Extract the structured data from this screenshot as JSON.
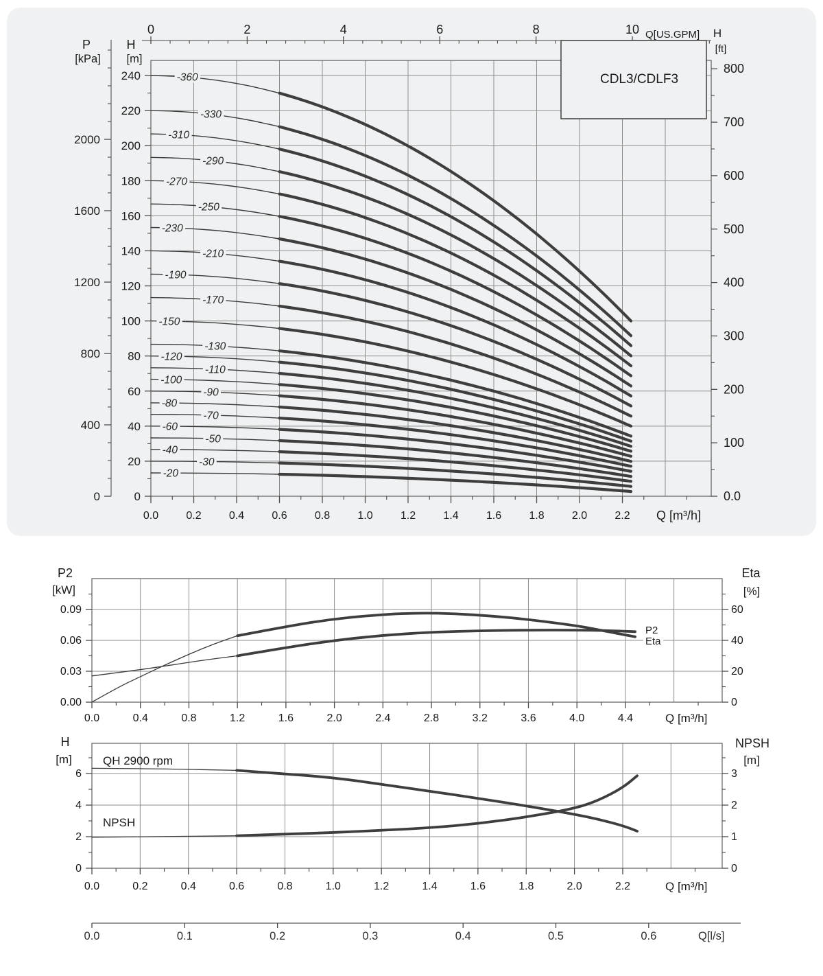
{
  "page": {
    "background": "#ffffff",
    "panel_background": "#f0f1f2"
  },
  "colors": {
    "curve": "#3e3e3e",
    "thin_curve": "#3a3a3a",
    "grid": "#8d8d8d",
    "axis": "#696969",
    "tick": "#4a4a4a",
    "text": "#1b1b1b",
    "box_border": "#4a4a4a",
    "ls_axis": "#9a9a9a"
  },
  "chart_data": [
    {
      "id": "qh-family",
      "type": "line",
      "title": "CDL3/CDLF3",
      "x_bottom": {
        "label": "Q [m³/h]",
        "ticks": [
          "0.0",
          "0.2",
          "0.4",
          "0.6",
          "0.8",
          "1.0",
          "1.2",
          "1.4",
          "1.6",
          "1.8",
          "2.0",
          "2.2"
        ],
        "minor_step": 0.1,
        "range": [
          0,
          2.61
        ]
      },
      "x_top": {
        "label": "Q[US.GPM]",
        "ticks": [
          "0",
          "2",
          "4",
          "6",
          "8",
          "10"
        ],
        "minor_step": 0.4
      },
      "y_left_p": {
        "title": [
          "P",
          "[kPa]"
        ],
        "ticks": [
          "0",
          "400",
          "800",
          "1200",
          "1600",
          "2000"
        ],
        "minor_step": 100
      },
      "y_left_h": {
        "title": [
          "H",
          "[m]"
        ],
        "ticks": [
          "0",
          "20",
          "40",
          "60",
          "80",
          "100",
          "120",
          "140",
          "160",
          "180",
          "200",
          "220",
          "240"
        ],
        "minor_step": 10
      },
      "y_right_ft": {
        "title": [
          "H",
          "[ft]"
        ],
        "ticks": [
          "0.0",
          "100",
          "200",
          "300",
          "400",
          "500",
          "600",
          "700",
          "800"
        ],
        "minor_step": 50
      },
      "q_solid_from": 0.6,
      "q_max": 2.24,
      "falloff_exponent": 2,
      "series": [
        {
          "label": "-360",
          "shutoff_head_m": 240.0,
          "end_head_m": 100.0,
          "label_q": 0.17
        },
        {
          "label": "-330",
          "shutoff_head_m": 220.0,
          "end_head_m": 91.6,
          "label_q": 0.28
        },
        {
          "label": "-310",
          "shutoff_head_m": 206.7,
          "end_head_m": 85.9,
          "label_q": 0.13
        },
        {
          "label": "-290",
          "shutoff_head_m": 193.3,
          "end_head_m": 80.1,
          "label_q": 0.29
        },
        {
          "label": "-270",
          "shutoff_head_m": 180.0,
          "end_head_m": 74.4,
          "label_q": 0.12
        },
        {
          "label": "-250",
          "shutoff_head_m": 166.7,
          "end_head_m": 68.7,
          "label_q": 0.27
        },
        {
          "label": "-230",
          "shutoff_head_m": 153.3,
          "end_head_m": 62.9,
          "label_q": 0.1
        },
        {
          "label": "-210",
          "shutoff_head_m": 140.0,
          "end_head_m": 57.2,
          "label_q": 0.29
        },
        {
          "label": "-190",
          "shutoff_head_m": 126.7,
          "end_head_m": 51.5,
          "label_q": 0.115
        },
        {
          "label": "-170",
          "shutoff_head_m": 113.3,
          "end_head_m": 45.7,
          "label_q": 0.29
        },
        {
          "label": "-150",
          "shutoff_head_m": 100.0,
          "end_head_m": 40.0,
          "label_q": 0.086
        },
        {
          "label": "-130",
          "shutoff_head_m": 86.7,
          "end_head_m": 34.3,
          "label_q": 0.3
        },
        {
          "label": "-120",
          "shutoff_head_m": 80.0,
          "end_head_m": 31.4,
          "label_q": 0.096
        },
        {
          "label": "-110",
          "shutoff_head_m": 73.3,
          "end_head_m": 28.5,
          "label_q": 0.3
        },
        {
          "label": "-100",
          "shutoff_head_m": 66.7,
          "end_head_m": 25.7,
          "label_q": 0.095
        },
        {
          "label": "-90",
          "shutoff_head_m": 60.0,
          "end_head_m": 22.8,
          "label_q": 0.28
        },
        {
          "label": "-80",
          "shutoff_head_m": 53.3,
          "end_head_m": 19.9,
          "label_q": 0.086
        },
        {
          "label": "-70",
          "shutoff_head_m": 46.7,
          "end_head_m": 17.1,
          "label_q": 0.28
        },
        {
          "label": "-60",
          "shutoff_head_m": 40.0,
          "end_head_m": 14.2,
          "label_q": 0.089
        },
        {
          "label": "-50",
          "shutoff_head_m": 33.3,
          "end_head_m": 11.3,
          "label_q": 0.29
        },
        {
          "label": "-40",
          "shutoff_head_m": 26.7,
          "end_head_m": 8.5,
          "label_q": 0.089
        },
        {
          "label": "-30",
          "shutoff_head_m": 20.0,
          "end_head_m": 5.6,
          "label_q": 0.26
        },
        {
          "label": "-20",
          "shutoff_head_m": 13.3,
          "end_head_m": 2.7,
          "label_q": 0.092
        }
      ]
    },
    {
      "id": "p2-eta",
      "type": "line",
      "x": {
        "label": "Q [m³/h]",
        "ticks": [
          "0.0",
          "0.4",
          "0.8",
          "1.2",
          "1.6",
          "2.0",
          "2.4",
          "2.8",
          "3.2",
          "3.6",
          "4.0",
          "4.4"
        ],
        "minor_step": 0.2
      },
      "y_left": {
        "title": [
          "P2",
          "[kW]"
        ],
        "ticks": [
          "0.00",
          "0.03",
          "0.06",
          "0.09"
        ],
        "minor_step": 0.015
      },
      "y_right": {
        "title": [
          "Eta",
          "[%]"
        ],
        "ticks": [
          "0",
          "20",
          "40",
          "60"
        ],
        "minor_step": 10
      },
      "series": [
        {
          "name": "P2",
          "curve_label": "P2",
          "unit": "kW",
          "solid_from": 1.2,
          "points": [
            [
              0,
              0.0255
            ],
            [
              0.3,
              0.03
            ],
            [
              0.6,
              0.035
            ],
            [
              0.9,
              0.0405
            ],
            [
              1.2,
              0.045
            ],
            [
              1.6,
              0.053
            ],
            [
              2.0,
              0.06
            ],
            [
              2.4,
              0.065
            ],
            [
              2.8,
              0.068
            ],
            [
              3.2,
              0.0693
            ],
            [
              3.6,
              0.07
            ],
            [
              4.0,
              0.07
            ],
            [
              4.25,
              0.0695
            ],
            [
              4.48,
              0.0685
            ]
          ]
        },
        {
          "name": "Eta",
          "curve_label": "Eta",
          "unit": "%",
          "solid_from": 1.2,
          "points": [
            [
              0,
              0
            ],
            [
              0.2,
              9
            ],
            [
              0.4,
              16.5
            ],
            [
              0.6,
              24
            ],
            [
              0.8,
              31
            ],
            [
              1.0,
              37.5
            ],
            [
              1.2,
              43
            ],
            [
              1.6,
              49
            ],
            [
              2.0,
              54
            ],
            [
              2.4,
              56.8
            ],
            [
              2.7,
              57.8
            ],
            [
              3.0,
              57.3
            ],
            [
              3.3,
              55.8
            ],
            [
              3.6,
              53.5
            ],
            [
              4.0,
              49.5
            ],
            [
              4.2,
              46.5
            ],
            [
              4.48,
              42.3
            ]
          ]
        }
      ]
    },
    {
      "id": "qh-npsh",
      "type": "line",
      "x": {
        "label": "Q [m³/h]",
        "ticks": [
          "0.0",
          "0.2",
          "0.4",
          "0.6",
          "0.8",
          "1.0",
          "1.2",
          "1.4",
          "1.6",
          "1.8",
          "2.0",
          "2.2"
        ],
        "minor_step": 0.1
      },
      "y_left": {
        "title": [
          "H",
          "[m]"
        ],
        "ticks": [
          "0",
          "2",
          "4",
          "6"
        ],
        "minor_step": 1
      },
      "y_right": {
        "title": [
          "NPSH",
          "[m]"
        ],
        "ticks": [
          "0",
          "1",
          "2",
          "3"
        ],
        "minor_step": 0.5
      },
      "series": [
        {
          "name": "QH",
          "inplot_label": "QH 2900 rpm",
          "unit": "m",
          "solid_from": 0.6,
          "points": [
            [
              0,
              6.33
            ],
            [
              0.3,
              6.3
            ],
            [
              0.6,
              6.2
            ],
            [
              0.8,
              5.98
            ],
            [
              1.0,
              5.74
            ],
            [
              1.2,
              5.32
            ],
            [
              1.4,
              4.88
            ],
            [
              1.6,
              4.43
            ],
            [
              1.8,
              3.95
            ],
            [
              2.0,
              3.42
            ],
            [
              2.1,
              3.1
            ],
            [
              2.2,
              2.7
            ],
            [
              2.26,
              2.35
            ]
          ]
        },
        {
          "name": "NPSH",
          "inplot_label": "NPSH",
          "unit": "m",
          "solid_from": 0.6,
          "points": [
            [
              0,
              0.98
            ],
            [
              0.3,
              1.0
            ],
            [
              0.6,
              1.03
            ],
            [
              0.8,
              1.08
            ],
            [
              1.0,
              1.13
            ],
            [
              1.2,
              1.2
            ],
            [
              1.4,
              1.28
            ],
            [
              1.6,
              1.41
            ],
            [
              1.8,
              1.62
            ],
            [
              2.0,
              1.89
            ],
            [
              2.1,
              2.15
            ],
            [
              2.2,
              2.55
            ],
            [
              2.26,
              2.93
            ]
          ]
        }
      ]
    },
    {
      "id": "q-ls",
      "type": "axis",
      "label": "Q[l/s]",
      "ticks": [
        "0.0",
        "0.1",
        "0.2",
        "0.3",
        "0.4",
        "0.5",
        "0.6"
      ]
    }
  ]
}
